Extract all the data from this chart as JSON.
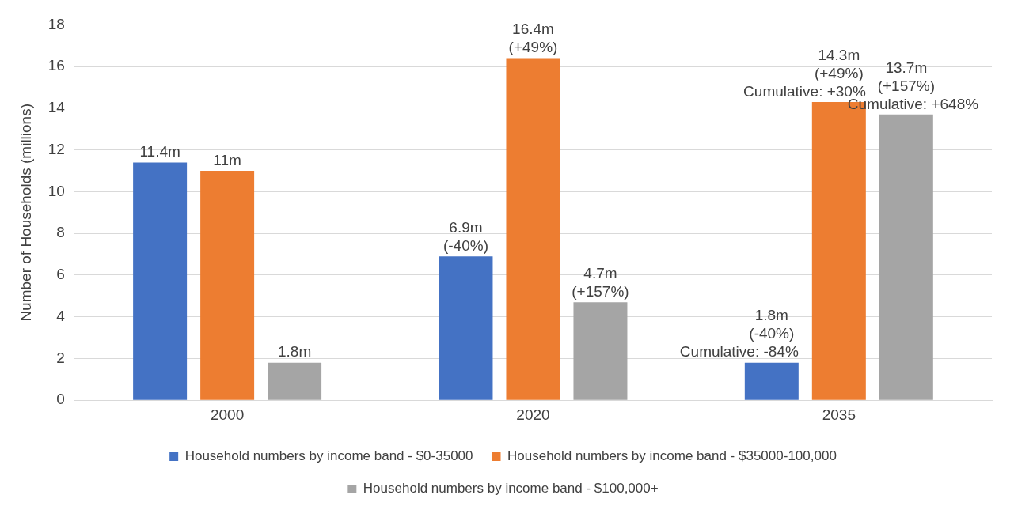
{
  "chart_data": {
    "type": "bar",
    "ylabel": "Number of Households (millions)",
    "categories": [
      "2000",
      "2020",
      "2035"
    ],
    "series": [
      {
        "name": "Household numbers by income band - $0-35000",
        "color": "#4472c4",
        "values": [
          11.4,
          6.9,
          1.8
        ],
        "value_labels": [
          "11.4m",
          "6.9m",
          "1.8m"
        ]
      },
      {
        "name": "Household numbers by income band - $35000-100,000",
        "color": "#ed7d31",
        "values": [
          11,
          16.4,
          14.3
        ],
        "value_labels": [
          "11m",
          "16.4m",
          "14.3m"
        ]
      },
      {
        "name": "Household numbers by income band - $100,000+",
        "color": "#a5a5a5",
        "values": [
          1.8,
          4.7,
          13.7
        ],
        "value_labels": [
          "1.8m",
          "4.7m",
          "13.7m"
        ]
      }
    ],
    "annotations": [
      "(-40%)",
      "(+49%)",
      "(+157%)",
      "(-40%)\nCumulative: -84%",
      "(+49%)\nCumulative: +30%",
      "(+157%)\nCumulative: +648%"
    ],
    "ylim": [
      0,
      18
    ],
    "yticks": [
      0,
      2,
      4,
      6,
      8,
      10,
      12,
      14,
      16,
      18
    ],
    "grid": "y",
    "legend": "bottom"
  }
}
